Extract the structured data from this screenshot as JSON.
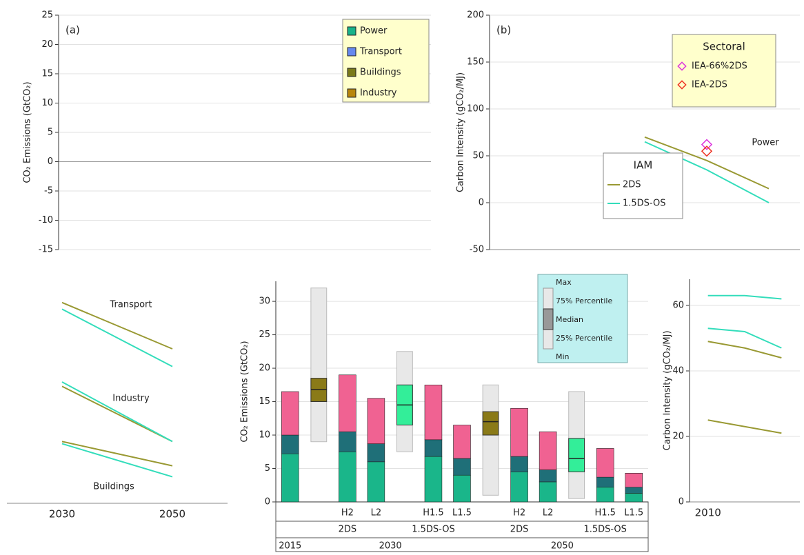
{
  "chart_data": [
    {
      "type": "bar",
      "panel_label": "(a)",
      "y_label": "CO₂ Emissions (GtCO₂)",
      "ylim": [
        -15,
        25
      ],
      "yticks": [
        -15,
        -10,
        -5,
        0,
        5,
        10,
        15,
        20,
        25
      ],
      "legend": [
        {
          "name": "Power",
          "color": "#19b38a"
        },
        {
          "name": "Transport",
          "color": "#6688ee"
        },
        {
          "name": "Buildings",
          "color": "#7a7a1a"
        },
        {
          "name": "Industry",
          "color": "#b8860b"
        }
      ]
    },
    {
      "type": "line",
      "panel_label": "(b)",
      "y_label": "Carbon Intensity (gCO₂/MJ)",
      "ylim": [
        -50,
        200
      ],
      "yticks": [
        -50,
        0,
        50,
        100,
        150,
        200
      ],
      "categories": [
        null,
        null,
        null,
        null,
        null
      ],
      "annotation": "Power",
      "legends": [
        {
          "title": "Sectoral",
          "series": [
            {
              "name": "IEA-66%2DS",
              "color": "#dd33dd",
              "marker": "diamond",
              "values": [
                null,
                null,
                null,
                62,
                null
              ]
            },
            {
              "name": "IEA-2DS",
              "color": "#ee3322",
              "marker": "diamond",
              "values": [
                null,
                null,
                null,
                55,
                null
              ]
            }
          ]
        },
        {
          "title": "IAM",
          "series": [
            {
              "name": "2DS",
              "color": "#999933",
              "values": [
                null,
                null,
                70,
                45,
                15
              ]
            },
            {
              "name": "1.5DS-OS",
              "color": "#33ddbb",
              "values": [
                null,
                null,
                65,
                35,
                0
              ]
            }
          ]
        }
      ]
    },
    {
      "type": "stacked_bar_box",
      "y_label": "CO₂ Emissions (GtCO₂)",
      "ylim": [
        0,
        33
      ],
      "yticks": [
        0,
        5,
        10,
        15,
        20,
        25,
        30
      ],
      "categories": [
        null,
        null,
        "H2",
        "L2",
        null,
        "H1.5",
        "L1.5",
        null,
        "H2",
        "L2",
        null,
        "H1.5",
        "L1.5"
      ],
      "scenarios": [
        "2DS",
        "1.5DS-OS",
        "2DS",
        "1.5DS-OS"
      ],
      "years": [
        "2015",
        "2030",
        "2050"
      ],
      "series": [
        {
          "color": "#1ab68a",
          "values": [
            7.2,
            null,
            7.5,
            6,
            null,
            6.8,
            4,
            null,
            4.5,
            3,
            null,
            2.2,
            1.3
          ]
        },
        {
          "color": "#1f6f78",
          "values": [
            2.8,
            null,
            3,
            2.7,
            null,
            2.5,
            2.5,
            null,
            2.3,
            1.8,
            null,
            1.5,
            0.9
          ]
        },
        {
          "color": "#f06292",
          "values": [
            6.5,
            null,
            8.5,
            6.8,
            null,
            8.2,
            5,
            null,
            7.2,
            5.7,
            null,
            4.3,
            2.1
          ]
        }
      ],
      "boxes": [
        {
          "color": "#8a7a18",
          "min": 9,
          "q1": 15,
          "median": 16.8,
          "q3": 18.5,
          "max": 32
        },
        {
          "color": "#33ee99",
          "min": 7.5,
          "q1": 11.5,
          "median": 14.5,
          "q3": 17.5,
          "max": 22.5
        },
        {
          "color": "#8a7a18",
          "min": 1,
          "q1": 10,
          "median": 12,
          "q3": 13.5,
          "max": 17.5
        },
        {
          "color": "#33ee99",
          "min": 0.5,
          "q1": 4.5,
          "median": 6.5,
          "q3": 9.5,
          "max": 16.5
        }
      ],
      "box_legend": [
        "Max",
        "75% Percentile",
        "Median",
        "25% Percentile",
        "Min"
      ]
    },
    {
      "type": "line",
      "ylim": [
        0,
        100
      ],
      "categories": [
        "2030",
        "2050"
      ],
      "annotations": [
        {
          "text": "Transport",
          "color": "#e75480"
        },
        {
          "text": "Industry",
          "color": "#2ab0a8"
        },
        {
          "text": "Buildings",
          "color": "#3a8fb0"
        }
      ],
      "legends": [
        {
          "series": [
            {
              "color": "#999933",
              "values": [
                91,
                70
              ]
            },
            {
              "color": "#33ddbb",
              "values": [
                88,
                62
              ]
            },
            {
              "color": "#999933",
              "values": [
                53,
                28
              ]
            },
            {
              "color": "#33ddbb",
              "values": [
                55,
                28
              ]
            },
            {
              "color": "#999933",
              "values": [
                28,
                17
              ]
            },
            {
              "color": "#33ddbb",
              "values": [
                27,
                12
              ]
            }
          ]
        }
      ]
    },
    {
      "type": "line",
      "y_label": "Carbon Intensity (gCO₂/MJ)",
      "ylim": [
        0,
        68
      ],
      "yticks": [
        0,
        20,
        40,
        60
      ],
      "categories": [
        "2010",
        null,
        null
      ],
      "legends": [
        {
          "series": [
            {
              "color": "#33ddbb",
              "values": [
                63,
                63,
                62
              ]
            },
            {
              "color": "#33ddbb",
              "values": [
                53,
                52,
                47
              ]
            },
            {
              "color": "#999933",
              "values": [
                49,
                47,
                44
              ]
            },
            {
              "color": "#999933",
              "values": [
                25,
                23,
                21
              ]
            }
          ]
        }
      ]
    }
  ]
}
